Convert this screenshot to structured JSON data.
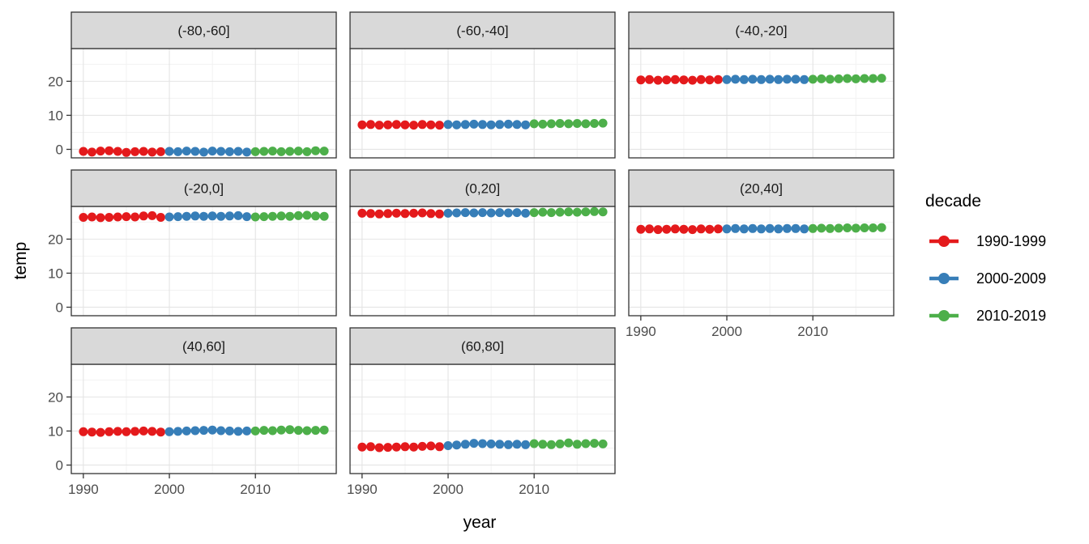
{
  "chart_data": {
    "type": "scatter",
    "title": "",
    "xlabel": "year",
    "ylabel": "temp",
    "facet_grid": {
      "ncol": 3,
      "nrow": 3
    },
    "x_ticks": [
      1990,
      2000,
      2010
    ],
    "y_ticks": [
      0,
      10,
      20
    ],
    "x_minor": [
      1995,
      2005,
      2015
    ],
    "y_minor": [
      5,
      15,
      25
    ],
    "xlim": [
      1988.6,
      2019.4
    ],
    "ylim": [
      -2.5,
      29.6
    ],
    "x": [
      1990,
      1991,
      1992,
      1993,
      1994,
      1995,
      1996,
      1997,
      1998,
      1999,
      2000,
      2001,
      2002,
      2003,
      2004,
      2005,
      2006,
      2007,
      2008,
      2009,
      2010,
      2011,
      2012,
      2013,
      2014,
      2015,
      2016,
      2017,
      2018
    ],
    "facets": [
      {
        "label": "(-80,-60]",
        "values": [
          -0.6,
          -0.8,
          -0.5,
          -0.4,
          -0.6,
          -0.9,
          -0.7,
          -0.6,
          -0.8,
          -0.7,
          -0.6,
          -0.7,
          -0.5,
          -0.6,
          -0.8,
          -0.5,
          -0.6,
          -0.7,
          -0.6,
          -0.8,
          -0.7,
          -0.6,
          -0.5,
          -0.7,
          -0.6,
          -0.5,
          -0.7,
          -0.4,
          -0.5
        ]
      },
      {
        "label": "(-60,-40]",
        "values": [
          7.2,
          7.3,
          7.1,
          7.2,
          7.3,
          7.2,
          7.1,
          7.3,
          7.2,
          7.1,
          7.3,
          7.2,
          7.3,
          7.4,
          7.3,
          7.2,
          7.3,
          7.4,
          7.3,
          7.2,
          7.5,
          7.4,
          7.5,
          7.6,
          7.5,
          7.6,
          7.5,
          7.6,
          7.7
        ]
      },
      {
        "label": "(-40,-20]",
        "values": [
          20.4,
          20.5,
          20.3,
          20.4,
          20.5,
          20.4,
          20.3,
          20.5,
          20.4,
          20.5,
          20.5,
          20.6,
          20.5,
          20.6,
          20.5,
          20.6,
          20.5,
          20.6,
          20.6,
          20.5,
          20.6,
          20.7,
          20.6,
          20.7,
          20.8,
          20.7,
          20.8,
          20.8,
          20.9
        ]
      },
      {
        "label": "(-20,0]",
        "values": [
          26.4,
          26.5,
          26.3,
          26.4,
          26.5,
          26.6,
          26.5,
          26.8,
          26.9,
          26.4,
          26.5,
          26.6,
          26.7,
          26.8,
          26.7,
          26.8,
          26.7,
          26.8,
          26.9,
          26.6,
          26.5,
          26.6,
          26.7,
          26.8,
          26.7,
          26.9,
          27.0,
          26.8,
          26.7
        ]
      },
      {
        "label": "(0,20]",
        "values": [
          27.6,
          27.5,
          27.4,
          27.5,
          27.6,
          27.5,
          27.6,
          27.7,
          27.5,
          27.4,
          27.6,
          27.7,
          27.8,
          27.7,
          27.8,
          27.7,
          27.8,
          27.7,
          27.8,
          27.6,
          27.8,
          27.9,
          27.8,
          27.9,
          28.0,
          27.9,
          28.0,
          28.1,
          28.0
        ]
      },
      {
        "label": "(20,40]",
        "values": [
          22.9,
          23.0,
          22.8,
          22.9,
          23.0,
          22.9,
          22.8,
          23.0,
          22.9,
          23.0,
          23.0,
          23.1,
          23.0,
          23.1,
          23.0,
          23.1,
          23.0,
          23.1,
          23.1,
          23.0,
          23.1,
          23.2,
          23.1,
          23.2,
          23.3,
          23.2,
          23.3,
          23.3,
          23.4
        ]
      },
      {
        "label": "(40,60]",
        "values": [
          9.8,
          9.7,
          9.6,
          9.8,
          9.9,
          9.8,
          9.9,
          10.0,
          9.9,
          9.7,
          9.8,
          9.9,
          10.0,
          10.1,
          10.2,
          10.3,
          10.1,
          10.0,
          9.9,
          10.0,
          10.0,
          10.2,
          10.1,
          10.3,
          10.4,
          10.2,
          10.1,
          10.2,
          10.3
        ]
      },
      {
        "label": "(60,80]",
        "values": [
          5.3,
          5.4,
          5.1,
          5.2,
          5.3,
          5.4,
          5.3,
          5.5,
          5.6,
          5.4,
          5.7,
          5.9,
          6.1,
          6.4,
          6.3,
          6.2,
          6.1,
          6.0,
          6.1,
          6.0,
          6.3,
          6.1,
          6.0,
          6.2,
          6.5,
          6.1,
          6.3,
          6.4,
          6.2
        ]
      }
    ],
    "legend": {
      "title": "decade",
      "position": "right",
      "entries": [
        {
          "label": "1990-1999",
          "color": "#E41A1C"
        },
        {
          "label": "2000-2009",
          "color": "#377EB8"
        },
        {
          "label": "2010-2019",
          "color": "#4DAF4A"
        }
      ]
    },
    "style": {
      "strip_bg": "#D9D9D9",
      "strip_text": "#1A1A1A",
      "panel_bg": "#FFFFFF",
      "panel_border": "#333333",
      "grid_major": "#E4E4E4",
      "grid_minor": "#F2F2F2",
      "tick_color": "#333333",
      "axis_text_color": "#4D4D4D",
      "title_text_color": "#000000"
    }
  }
}
